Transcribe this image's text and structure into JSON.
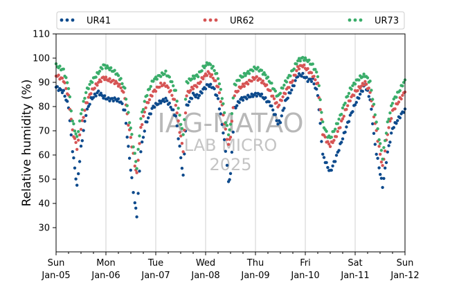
{
  "watermark": {
    "line1": "IAG-MATAO",
    "line2": "LAB MICRO",
    "line3": "2025"
  },
  "chart_data": {
    "type": "scatter",
    "ylabel": "Relative humidity (%)",
    "ylim": [
      20,
      110
    ],
    "yticks": [
      30,
      40,
      50,
      60,
      70,
      80,
      90,
      100,
      110
    ],
    "xlim": [
      0,
      7
    ],
    "x_unit": "days since Sun Jan-05",
    "xticks": [
      {
        "x": 0,
        "day": "Sun",
        "date": "Jan-05"
      },
      {
        "x": 1,
        "day": "Mon",
        "date": "Jan-06"
      },
      {
        "x": 2,
        "day": "Tue",
        "date": "Jan-07"
      },
      {
        "x": 3,
        "day": "Wed",
        "date": "Jan-08"
      },
      {
        "x": 4,
        "day": "Thu",
        "date": "Jan-09"
      },
      {
        "x": 5,
        "day": "Fri",
        "date": "Jan-10"
      },
      {
        "x": 6,
        "day": "Sat",
        "date": "Jan-11"
      },
      {
        "x": 7,
        "day": "Sun",
        "date": "Jan-12"
      }
    ],
    "grid": "vertical",
    "legend_position": "top",
    "series": [
      {
        "name": "UR41",
        "color": "#0d4a8c",
        "points": [
          [
            0.0,
            88
          ],
          [
            0.15,
            86
          ],
          [
            0.25,
            80
          ],
          [
            0.33,
            62
          ],
          [
            0.42,
            47
          ],
          [
            0.5,
            63
          ],
          [
            0.6,
            77
          ],
          [
            0.7,
            83
          ],
          [
            0.85,
            86
          ],
          [
            0.95,
            84
          ],
          [
            1.05,
            83
          ],
          [
            1.2,
            83
          ],
          [
            1.3,
            82
          ],
          [
            1.38,
            78
          ],
          [
            1.45,
            63
          ],
          [
            1.52,
            50
          ],
          [
            1.58,
            40
          ],
          [
            1.62,
            35
          ],
          [
            1.7,
            62
          ],
          [
            1.8,
            73
          ],
          [
            1.95,
            80
          ],
          [
            2.1,
            82
          ],
          [
            2.2,
            83
          ],
          [
            2.3,
            80
          ],
          [
            2.4,
            76
          ],
          [
            2.48,
            63
          ],
          [
            2.55,
            51
          ],
          [
            2.62,
            80
          ],
          [
            2.75,
            85
          ],
          [
            2.85,
            84
          ],
          [
            2.95,
            87
          ],
          [
            3.05,
            89
          ],
          [
            3.15,
            88
          ],
          [
            3.25,
            83
          ],
          [
            3.33,
            73
          ],
          [
            3.4,
            62
          ],
          [
            3.46,
            49
          ],
          [
            3.5,
            52
          ],
          [
            3.58,
            79
          ],
          [
            3.7,
            83
          ],
          [
            3.85,
            84
          ],
          [
            4.0,
            85
          ],
          [
            4.1,
            85
          ],
          [
            4.2,
            83
          ],
          [
            4.3,
            81
          ],
          [
            4.4,
            76
          ],
          [
            4.45,
            73
          ],
          [
            4.5,
            74
          ],
          [
            4.6,
            82
          ],
          [
            4.75,
            88
          ],
          [
            4.85,
            93
          ],
          [
            4.95,
            93
          ],
          [
            5.05,
            91
          ],
          [
            5.15,
            91
          ],
          [
            5.25,
            85
          ],
          [
            5.35,
            60
          ],
          [
            5.45,
            55
          ],
          [
            5.5,
            53
          ],
          [
            5.6,
            58
          ],
          [
            5.7,
            64
          ],
          [
            5.8,
            70
          ],
          [
            5.9,
            76
          ],
          [
            6.0,
            81
          ],
          [
            6.1,
            85
          ],
          [
            6.2,
            89
          ],
          [
            6.3,
            83
          ],
          [
            6.4,
            64
          ],
          [
            6.48,
            55
          ],
          [
            6.55,
            47
          ],
          [
            6.65,
            61
          ],
          [
            6.75,
            71
          ],
          [
            6.9,
            76
          ],
          [
            7.0,
            79
          ]
        ]
      },
      {
        "name": "UR62",
        "color": "#d65454",
        "points": [
          [
            0.0,
            93
          ],
          [
            0.15,
            91
          ],
          [
            0.25,
            84
          ],
          [
            0.33,
            70
          ],
          [
            0.42,
            63
          ],
          [
            0.5,
            71
          ],
          [
            0.6,
            81
          ],
          [
            0.7,
            86
          ],
          [
            0.85,
            90
          ],
          [
            0.95,
            92
          ],
          [
            1.05,
            91
          ],
          [
            1.2,
            90
          ],
          [
            1.3,
            88
          ],
          [
            1.38,
            84
          ],
          [
            1.45,
            73
          ],
          [
            1.52,
            64
          ],
          [
            1.58,
            56
          ],
          [
            1.62,
            52
          ],
          [
            1.7,
            71
          ],
          [
            1.8,
            80
          ],
          [
            1.95,
            86
          ],
          [
            2.1,
            89
          ],
          [
            2.2,
            89
          ],
          [
            2.3,
            86
          ],
          [
            2.4,
            81
          ],
          [
            2.48,
            70
          ],
          [
            2.55,
            62
          ],
          [
            2.62,
            85
          ],
          [
            2.75,
            88
          ],
          [
            2.85,
            89
          ],
          [
            2.95,
            92
          ],
          [
            3.05,
            94
          ],
          [
            3.15,
            92
          ],
          [
            3.25,
            88
          ],
          [
            3.33,
            80
          ],
          [
            3.4,
            70
          ],
          [
            3.46,
            64
          ],
          [
            3.5,
            68
          ],
          [
            3.58,
            85
          ],
          [
            3.7,
            88
          ],
          [
            3.85,
            90
          ],
          [
            4.0,
            92
          ],
          [
            4.1,
            91
          ],
          [
            4.2,
            89
          ],
          [
            4.3,
            86
          ],
          [
            4.4,
            82
          ],
          [
            4.45,
            80
          ],
          [
            4.5,
            82
          ],
          [
            4.6,
            86
          ],
          [
            4.75,
            91
          ],
          [
            4.85,
            96
          ],
          [
            4.95,
            97
          ],
          [
            5.05,
            95
          ],
          [
            5.15,
            93
          ],
          [
            5.25,
            89
          ],
          [
            5.35,
            69
          ],
          [
            5.45,
            65
          ],
          [
            5.5,
            64
          ],
          [
            5.6,
            67
          ],
          [
            5.7,
            72
          ],
          [
            5.8,
            78
          ],
          [
            5.9,
            83
          ],
          [
            6.0,
            86
          ],
          [
            6.1,
            88
          ],
          [
            6.2,
            90
          ],
          [
            6.3,
            86
          ],
          [
            6.4,
            73
          ],
          [
            6.48,
            63
          ],
          [
            6.55,
            55
          ],
          [
            6.65,
            69
          ],
          [
            6.75,
            78
          ],
          [
            6.9,
            83
          ],
          [
            7.0,
            86
          ]
        ]
      },
      {
        "name": "UR73",
        "color": "#3aad6a",
        "points": [
          [
            0.0,
            97
          ],
          [
            0.15,
            95
          ],
          [
            0.25,
            88
          ],
          [
            0.33,
            74
          ],
          [
            0.42,
            67
          ],
          [
            0.5,
            77
          ],
          [
            0.6,
            86
          ],
          [
            0.7,
            90
          ],
          [
            0.85,
            94
          ],
          [
            0.95,
            97
          ],
          [
            1.05,
            96
          ],
          [
            1.2,
            94
          ],
          [
            1.3,
            91
          ],
          [
            1.38,
            87
          ],
          [
            1.45,
            77
          ],
          [
            1.52,
            68
          ],
          [
            1.58,
            60
          ],
          [
            1.62,
            55
          ],
          [
            1.7,
            75
          ],
          [
            1.8,
            84
          ],
          [
            1.95,
            91
          ],
          [
            2.1,
            93
          ],
          [
            2.2,
            94
          ],
          [
            2.3,
            91
          ],
          [
            2.4,
            86
          ],
          [
            2.48,
            76
          ],
          [
            2.55,
            68
          ],
          [
            2.62,
            90
          ],
          [
            2.75,
            92
          ],
          [
            2.85,
            93
          ],
          [
            2.95,
            96
          ],
          [
            3.05,
            98
          ],
          [
            3.15,
            96
          ],
          [
            3.25,
            92
          ],
          [
            3.33,
            84
          ],
          [
            3.4,
            74
          ],
          [
            3.46,
            69
          ],
          [
            3.5,
            72
          ],
          [
            3.58,
            89
          ],
          [
            3.7,
            92
          ],
          [
            3.85,
            94
          ],
          [
            4.0,
            96
          ],
          [
            4.1,
            95
          ],
          [
            4.2,
            93
          ],
          [
            4.3,
            90
          ],
          [
            4.4,
            86
          ],
          [
            4.45,
            84
          ],
          [
            4.5,
            86
          ],
          [
            4.6,
            90
          ],
          [
            4.75,
            95
          ],
          [
            4.85,
            99
          ],
          [
            4.95,
            100
          ],
          [
            5.05,
            99
          ],
          [
            5.15,
            97
          ],
          [
            5.25,
            93
          ],
          [
            5.35,
            73
          ],
          [
            5.45,
            68
          ],
          [
            5.5,
            67
          ],
          [
            5.6,
            71
          ],
          [
            5.7,
            76
          ],
          [
            5.8,
            82
          ],
          [
            5.9,
            87
          ],
          [
            6.0,
            90
          ],
          [
            6.1,
            92
          ],
          [
            6.2,
            93
          ],
          [
            6.3,
            90
          ],
          [
            6.4,
            77
          ],
          [
            6.48,
            67
          ],
          [
            6.55,
            59
          ],
          [
            6.65,
            73
          ],
          [
            6.75,
            82
          ],
          [
            6.9,
            87
          ],
          [
            7.0,
            91
          ]
        ]
      }
    ]
  }
}
